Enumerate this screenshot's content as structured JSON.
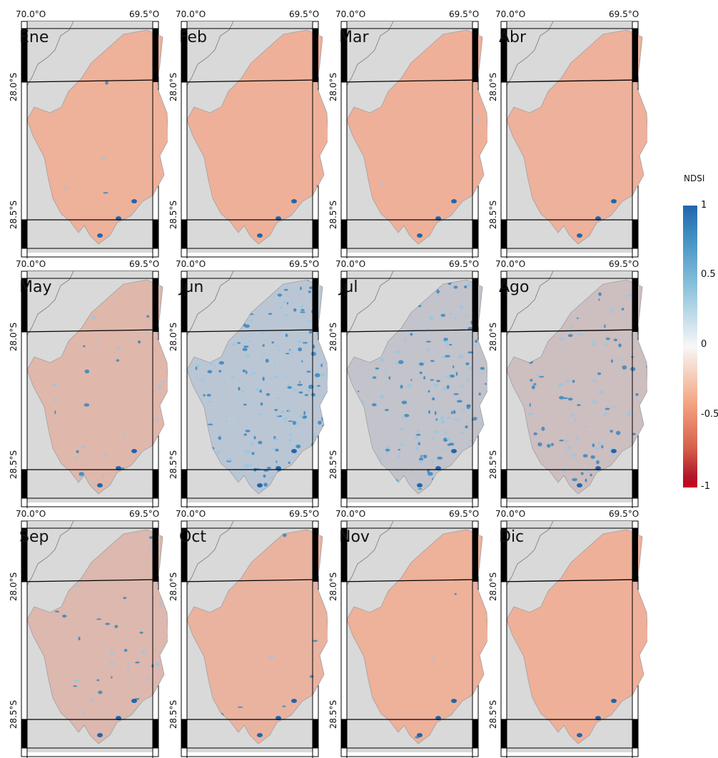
{
  "axes": {
    "lon_left": "70.0°O",
    "lon_right": "69.5°O",
    "lat_top": "28.0°S",
    "lat_bottom": "28.5°S"
  },
  "months": [
    {
      "label": "Ene",
      "snow": 0.05
    },
    {
      "label": "Feb",
      "snow": 0.04
    },
    {
      "label": "Mar",
      "snow": 0.04
    },
    {
      "label": "Abr",
      "snow": 0.06
    },
    {
      "label": "May",
      "snow": 0.25
    },
    {
      "label": "Jun",
      "snow": 0.75
    },
    {
      "label": "Jul",
      "snow": 0.65
    },
    {
      "label": "Ago",
      "snow": 0.5
    },
    {
      "label": "Sep",
      "snow": 0.3
    },
    {
      "label": "Oct",
      "snow": 0.12
    },
    {
      "label": "Nov",
      "snow": 0.05
    },
    {
      "label": "Dic",
      "snow": 0.04
    }
  ],
  "legend": {
    "title": "NDSI",
    "ticks": [
      "1",
      "0.5",
      "0",
      "-0.5",
      "-1"
    ]
  },
  "colors": {
    "snow": "#2c7bb6",
    "bare": "#f2a98f",
    "background": "#d9d9d9"
  }
}
